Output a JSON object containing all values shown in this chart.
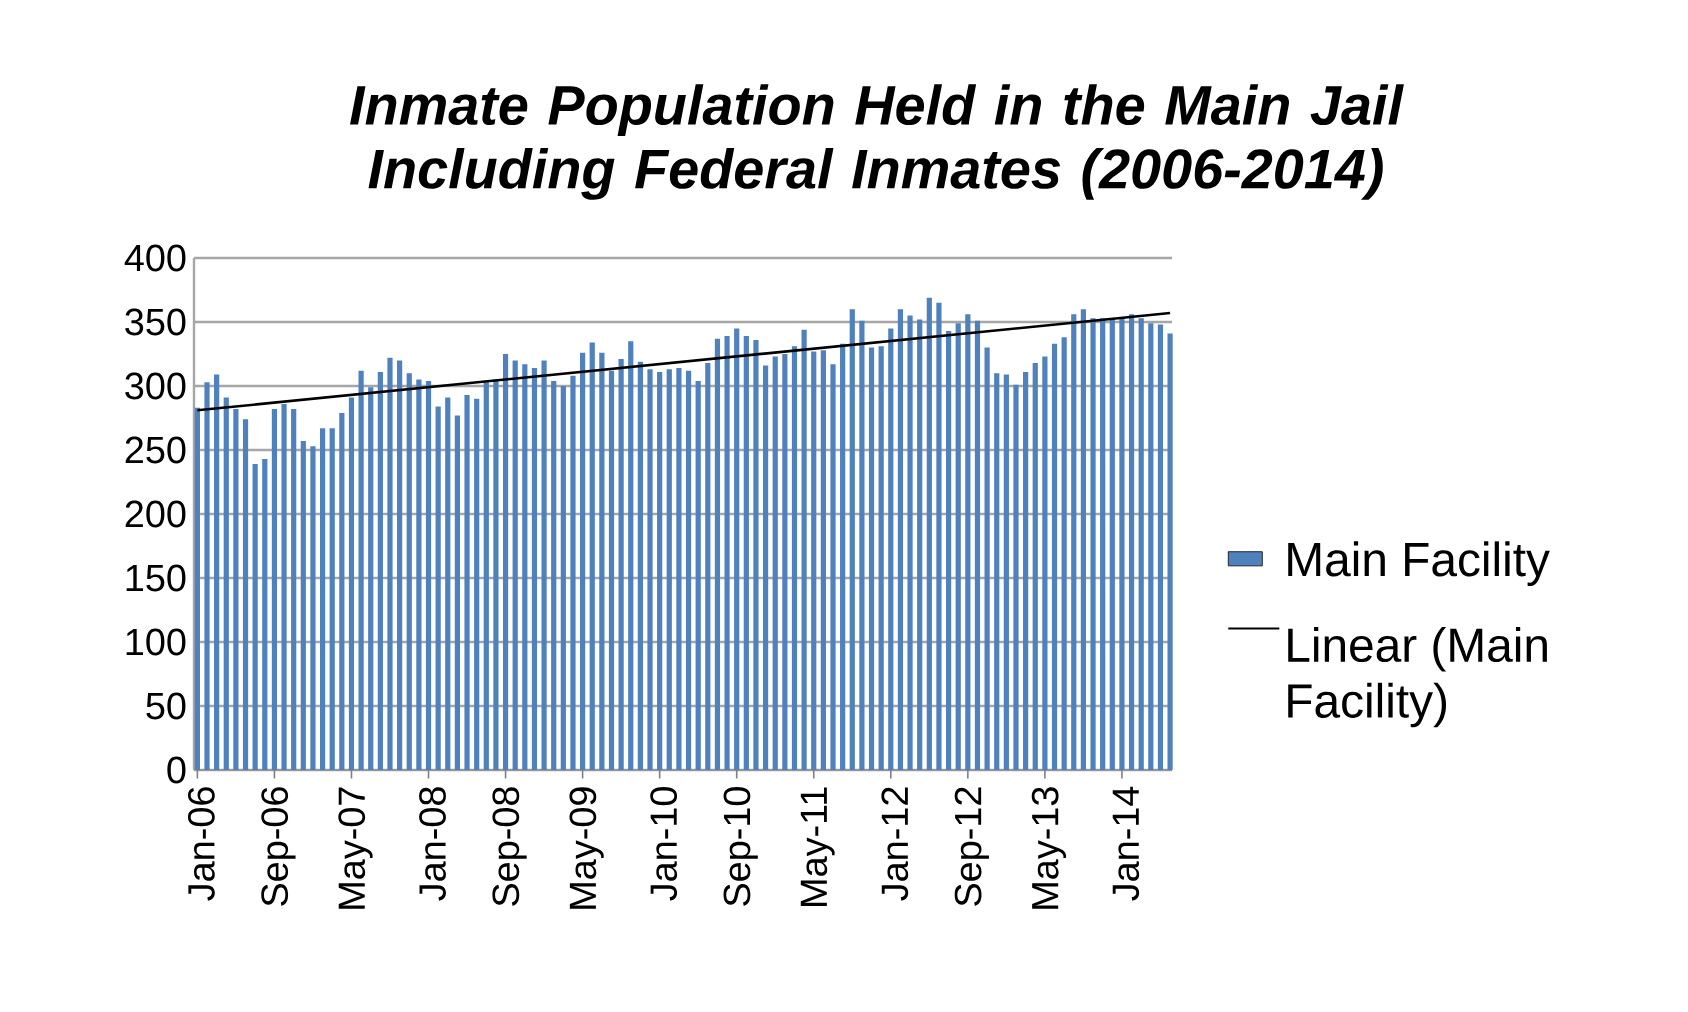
{
  "chart_data": {
    "type": "bar",
    "title": "Inmate Population Held in the Main Jail Including Federal Inmates (2006-2014)",
    "categories": [
      "Jan-06",
      null,
      null,
      null,
      null,
      null,
      null,
      null,
      "Sep-06",
      null,
      null,
      null,
      null,
      null,
      null,
      null,
      "May-07",
      null,
      null,
      null,
      null,
      null,
      null,
      null,
      "Jan-08",
      null,
      null,
      null,
      null,
      null,
      null,
      null,
      "Sep-08",
      null,
      null,
      null,
      null,
      null,
      null,
      null,
      "May-09",
      null,
      null,
      null,
      null,
      null,
      null,
      null,
      "Jan-10",
      null,
      null,
      null,
      null,
      null,
      null,
      null,
      "Sep-10",
      null,
      null,
      null,
      null,
      null,
      null,
      null,
      "May-11",
      null,
      null,
      null,
      null,
      null,
      null,
      null,
      "Jan-12",
      null,
      null,
      null,
      null,
      null,
      null,
      null,
      "Sep-12",
      null,
      null,
      null,
      null,
      null,
      null,
      null,
      "May-13",
      null,
      null,
      null,
      null,
      null,
      null,
      null,
      "Jan-14",
      null,
      null,
      null,
      null,
      null
    ],
    "series": [
      {
        "name": "Main Facility",
        "color": "#4f81bd",
        "values": [
          283,
          303,
          309,
          291,
          282,
          274,
          239,
          243,
          282,
          286,
          282,
          257,
          253,
          267,
          267,
          279,
          291,
          312,
          299,
          311,
          322,
          320,
          310,
          305,
          304,
          284,
          291,
          277,
          293,
          290,
          303,
          305,
          325,
          320,
          317,
          314,
          320,
          304,
          300,
          308,
          326,
          334,
          326,
          312,
          321,
          335,
          319,
          313,
          311,
          313,
          314,
          312,
          304,
          318,
          337,
          339,
          345,
          339,
          336,
          316,
          323,
          325,
          331,
          344,
          327,
          328,
          317,
          333,
          360,
          351,
          330,
          331,
          345,
          360,
          355,
          352,
          369,
          365,
          343,
          349,
          356,
          351,
          330,
          310,
          309,
          301,
          311,
          318,
          323,
          333,
          338,
          356,
          360,
          353,
          353,
          353,
          353,
          356,
          353,
          349,
          348,
          341
        ]
      },
      {
        "name": "Linear (Main Facility)",
        "type": "line",
        "color": "#000000",
        "values": [
          281,
          null,
          null,
          null,
          null,
          null,
          null,
          null,
          null,
          null,
          null,
          null,
          null,
          null,
          null,
          null,
          null,
          null,
          null,
          null,
          null,
          null,
          null,
          null,
          null,
          null,
          null,
          null,
          null,
          null,
          null,
          null,
          null,
          null,
          null,
          null,
          null,
          null,
          null,
          null,
          null,
          null,
          null,
          null,
          null,
          null,
          null,
          null,
          null,
          null,
          null,
          null,
          null,
          null,
          null,
          null,
          null,
          null,
          null,
          null,
          null,
          null,
          null,
          null,
          null,
          null,
          null,
          null,
          null,
          null,
          null,
          null,
          null,
          null,
          null,
          null,
          null,
          null,
          null,
          null,
          null,
          null,
          null,
          null,
          null,
          null,
          null,
          null,
          null,
          null,
          null,
          null,
          null,
          null,
          null,
          null,
          null,
          null,
          null,
          null,
          null,
          357
        ]
      }
    ],
    "ylim": [
      0,
      400
    ],
    "yticks": [
      0,
      50,
      100,
      150,
      200,
      250,
      300,
      350,
      400
    ],
    "grid": "y",
    "legend": "right"
  }
}
